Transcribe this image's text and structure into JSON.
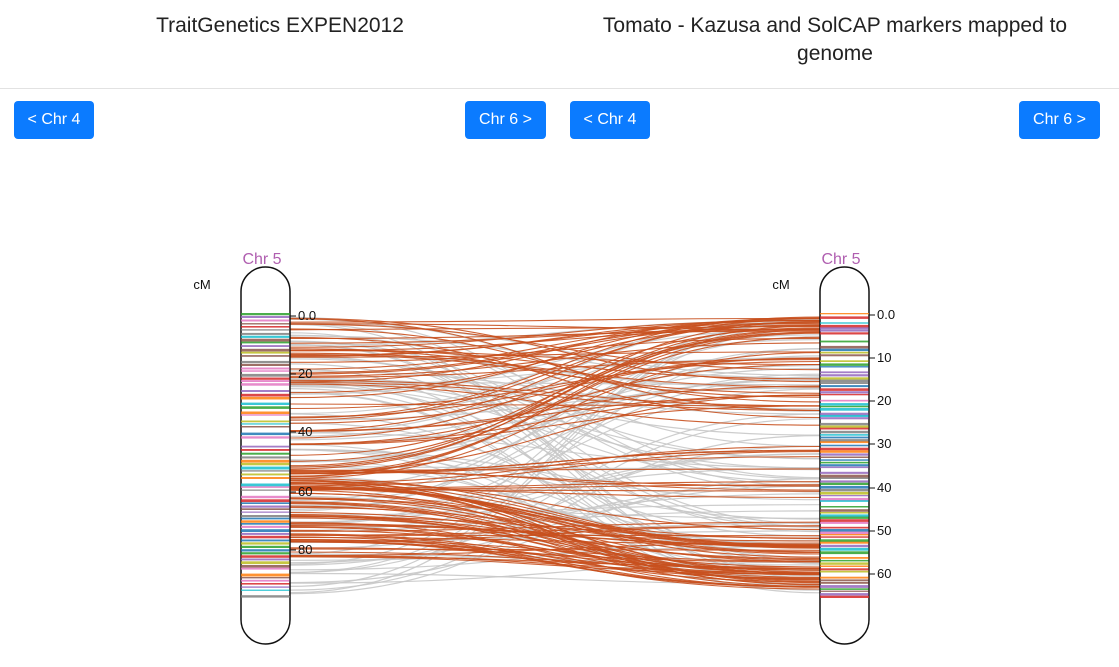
{
  "left_map": {
    "title": "TraitGenetics EXPEN2012",
    "prev_label": "< Chr 4",
    "next_label": "Chr 6 >",
    "chromosome": "Chr 5",
    "unit": "cM",
    "ticks": [
      "0.0",
      "20",
      "40",
      "60",
      "80"
    ]
  },
  "right_map": {
    "title": "Tomato - Kazusa and SolCAP markers mapped to genome",
    "prev_label": "< Chr 4",
    "next_label": "Chr 6 >",
    "chromosome": "Chr 5",
    "unit": "cM",
    "ticks": [
      "0.0",
      "10",
      "20",
      "30",
      "40",
      "50",
      "60"
    ]
  },
  "colors": {
    "button": "#0b7bff",
    "chromosome_label": "#b05fb0",
    "highlight_link": "#c8501e",
    "gray_link": "#c8c8c8",
    "marker_palette": [
      "#9467bd",
      "#2ca02c",
      "#e377c2",
      "#1f77b4",
      "#8c564b",
      "#d62728",
      "#17becf",
      "#bcbd22",
      "#ff7f0e",
      "#7f7f7f"
    ]
  }
}
